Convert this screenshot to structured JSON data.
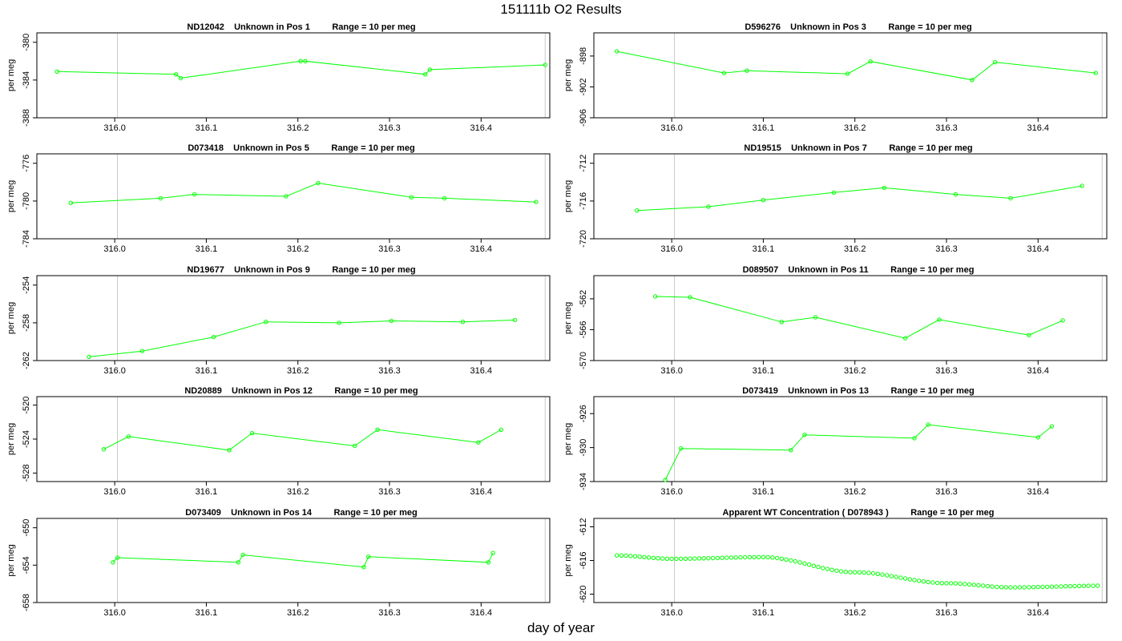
{
  "title": "151111b  O2 Results",
  "xlabel": "day of year",
  "colors": {
    "series": "#00ff00",
    "marker_line": "#c8c8c8",
    "axis": "#000000"
  },
  "chart_data": [
    {
      "type": "line",
      "title": "ND12042    Unknown in Pos 1         Range = 10 per meg",
      "ylabel": "per meg",
      "xlim": [
        315.915,
        316.475
      ],
      "ylim": [
        -388,
        -379
      ],
      "yticks": [
        -380,
        -384,
        -388
      ],
      "xticks": [
        316.0,
        316.1,
        316.2,
        316.3,
        316.4
      ],
      "vlines": [
        316.003,
        316.47
      ],
      "x": [
        315.937,
        316.067,
        316.072,
        316.203,
        316.208,
        316.339,
        316.344,
        316.47
      ],
      "y": [
        -383.1,
        -383.4,
        -383.8,
        -382.0,
        -382.0,
        -383.4,
        -382.9,
        -382.4
      ]
    },
    {
      "type": "line",
      "title": "D596276    Unknown in Pos 3         Range = 10 per meg",
      "ylabel": "per meg",
      "xlim": [
        315.915,
        316.475
      ],
      "ylim": [
        -906,
        -895
      ],
      "yticks": [
        -898,
        -902,
        -906
      ],
      "xticks": [
        316.0,
        316.1,
        316.2,
        316.3,
        316.4
      ],
      "vlines": [
        316.003,
        316.47
      ],
      "x": [
        315.94,
        316.057,
        316.082,
        316.192,
        316.217,
        316.328,
        316.353,
        316.463
      ],
      "y": [
        -897.4,
        -900.2,
        -899.9,
        -900.3,
        -898.7,
        -901.1,
        -898.8,
        -900.2
      ]
    },
    {
      "type": "line",
      "title": "D073418    Unknown in Pos 5         Range = 10 per meg",
      "ylabel": "per meg",
      "xlim": [
        315.915,
        316.475
      ],
      "ylim": [
        -784,
        -775
      ],
      "yticks": [
        -776,
        -780,
        -784
      ],
      "xticks": [
        316.0,
        316.1,
        316.2,
        316.3,
        316.4
      ],
      "vlines": [
        316.003,
        316.47
      ],
      "x": [
        315.952,
        316.05,
        316.087,
        316.187,
        316.222,
        316.324,
        316.36,
        316.46
      ],
      "y": [
        -780.2,
        -779.7,
        -779.3,
        -779.5,
        -778.1,
        -779.6,
        -779.7,
        -780.1
      ]
    },
    {
      "type": "line",
      "title": "ND19515    Unknown in Pos 7         Range = 10 per meg",
      "ylabel": "per meg",
      "xlim": [
        315.915,
        316.475
      ],
      "ylim": [
        -720,
        -711
      ],
      "yticks": [
        -712,
        -716,
        -720
      ],
      "xticks": [
        316.0,
        316.1,
        316.2,
        316.3,
        316.4
      ],
      "vlines": [
        316.003,
        316.47
      ],
      "x": [
        315.962,
        316.04,
        316.1,
        316.177,
        316.232,
        316.31,
        316.37,
        316.448
      ],
      "y": [
        -717.0,
        -716.6,
        -715.9,
        -715.1,
        -714.6,
        -715.3,
        -715.7,
        -714.4
      ]
    },
    {
      "type": "line",
      "title": "ND19677    Unknown in Pos 9         Range = 10 per meg",
      "ylabel": "per meg",
      "xlim": [
        315.915,
        316.475
      ],
      "ylim": [
        -262,
        -253
      ],
      "yticks": [
        -254,
        -258,
        -262
      ],
      "xticks": [
        316.0,
        316.1,
        316.2,
        316.3,
        316.4
      ],
      "vlines": [
        316.003,
        316.47
      ],
      "x": [
        315.972,
        316.03,
        316.108,
        316.165,
        316.245,
        316.302,
        316.38,
        316.437
      ],
      "y": [
        -261.6,
        -261.0,
        -259.5,
        -257.9,
        -258.0,
        -257.8,
        -257.9,
        -257.7
      ]
    },
    {
      "type": "line",
      "title": "D089507    Unknown in Pos 11         Range = 10 per meg",
      "ylabel": "per meg",
      "xlim": [
        315.915,
        316.475
      ],
      "ylim": [
        -570,
        -559
      ],
      "yticks": [
        -562,
        -566,
        -570
      ],
      "xticks": [
        316.0,
        316.1,
        316.2,
        316.3,
        316.4
      ],
      "vlines": [
        316.003,
        316.47
      ],
      "x": [
        315.982,
        316.02,
        316.12,
        316.157,
        316.255,
        316.292,
        316.39,
        316.427
      ],
      "y": [
        -561.7,
        -561.8,
        -565.0,
        -564.4,
        -567.1,
        -564.7,
        -566.7,
        -564.8
      ]
    },
    {
      "type": "line",
      "title": "ND20889    Unknown in Pos 12         Range = 10 per meg",
      "ylabel": "per meg",
      "xlim": [
        315.915,
        316.475
      ],
      "ylim": [
        -529,
        -519
      ],
      "yticks": [
        -520,
        -524,
        -528
      ],
      "xticks": [
        316.0,
        316.1,
        316.2,
        316.3,
        316.4
      ],
      "vlines": [
        316.003,
        316.47
      ],
      "x": [
        315.988,
        316.015,
        316.125,
        316.15,
        316.262,
        316.287,
        316.397,
        316.422
      ],
      "y": [
        -525.2,
        -523.7,
        -525.3,
        -523.3,
        -524.8,
        -522.9,
        -524.4,
        -522.9
      ]
    },
    {
      "type": "line",
      "title": "D073419    Unknown in Pos 13         Range = 10 per meg",
      "ylabel": "per meg",
      "xlim": [
        315.915,
        316.475
      ],
      "ylim": [
        -934,
        -924
      ],
      "yticks": [
        -926,
        -930,
        -934
      ],
      "xticks": [
        316.0,
        316.1,
        316.2,
        316.3,
        316.4
      ],
      "vlines": [
        316.003,
        316.47
      ],
      "x": [
        315.993,
        316.01,
        316.13,
        316.145,
        316.265,
        316.28,
        316.4,
        316.415
      ],
      "y": [
        -933.8,
        -930.1,
        -930.3,
        -928.5,
        -928.9,
        -927.3,
        -928.8,
        -927.5
      ]
    },
    {
      "type": "line",
      "title": "D073409    Unknown in Pos 14         Range = 10 per meg",
      "ylabel": "per meg",
      "xlim": [
        315.915,
        316.475
      ],
      "ylim": [
        -658,
        -649
      ],
      "yticks": [
        -650,
        -654,
        -658
      ],
      "xticks": [
        316.0,
        316.1,
        316.2,
        316.3,
        316.4
      ],
      "vlines": [
        316.003,
        316.47
      ],
      "x": [
        315.998,
        316.003,
        316.135,
        316.14,
        316.272,
        316.277,
        316.408,
        316.413
      ],
      "y": [
        -653.7,
        -653.2,
        -653.7,
        -652.9,
        -654.2,
        -653.1,
        -653.7,
        -652.7
      ]
    },
    {
      "type": "scatter",
      "title": "Apparent WT Concentration ( D078943 )         Range = 10 per meg",
      "ylabel": "per meg",
      "xlim": [
        315.915,
        316.475
      ],
      "ylim": [
        -621,
        -611
      ],
      "yticks": [
        -612,
        -616,
        -620
      ],
      "xticks": [
        316.0,
        316.1,
        316.2,
        316.3,
        316.4
      ],
      "vlines": [
        316.003,
        316.47
      ],
      "x_start": 315.94,
      "x_step": 0.005,
      "count": 106,
      "key_x": [
        315.94,
        316.0,
        316.1,
        316.2,
        316.3,
        316.37,
        316.47
      ],
      "key_y": [
        -615.4,
        -615.8,
        -615.6,
        -617.4,
        -618.7,
        -619.2,
        -619.0
      ]
    }
  ]
}
